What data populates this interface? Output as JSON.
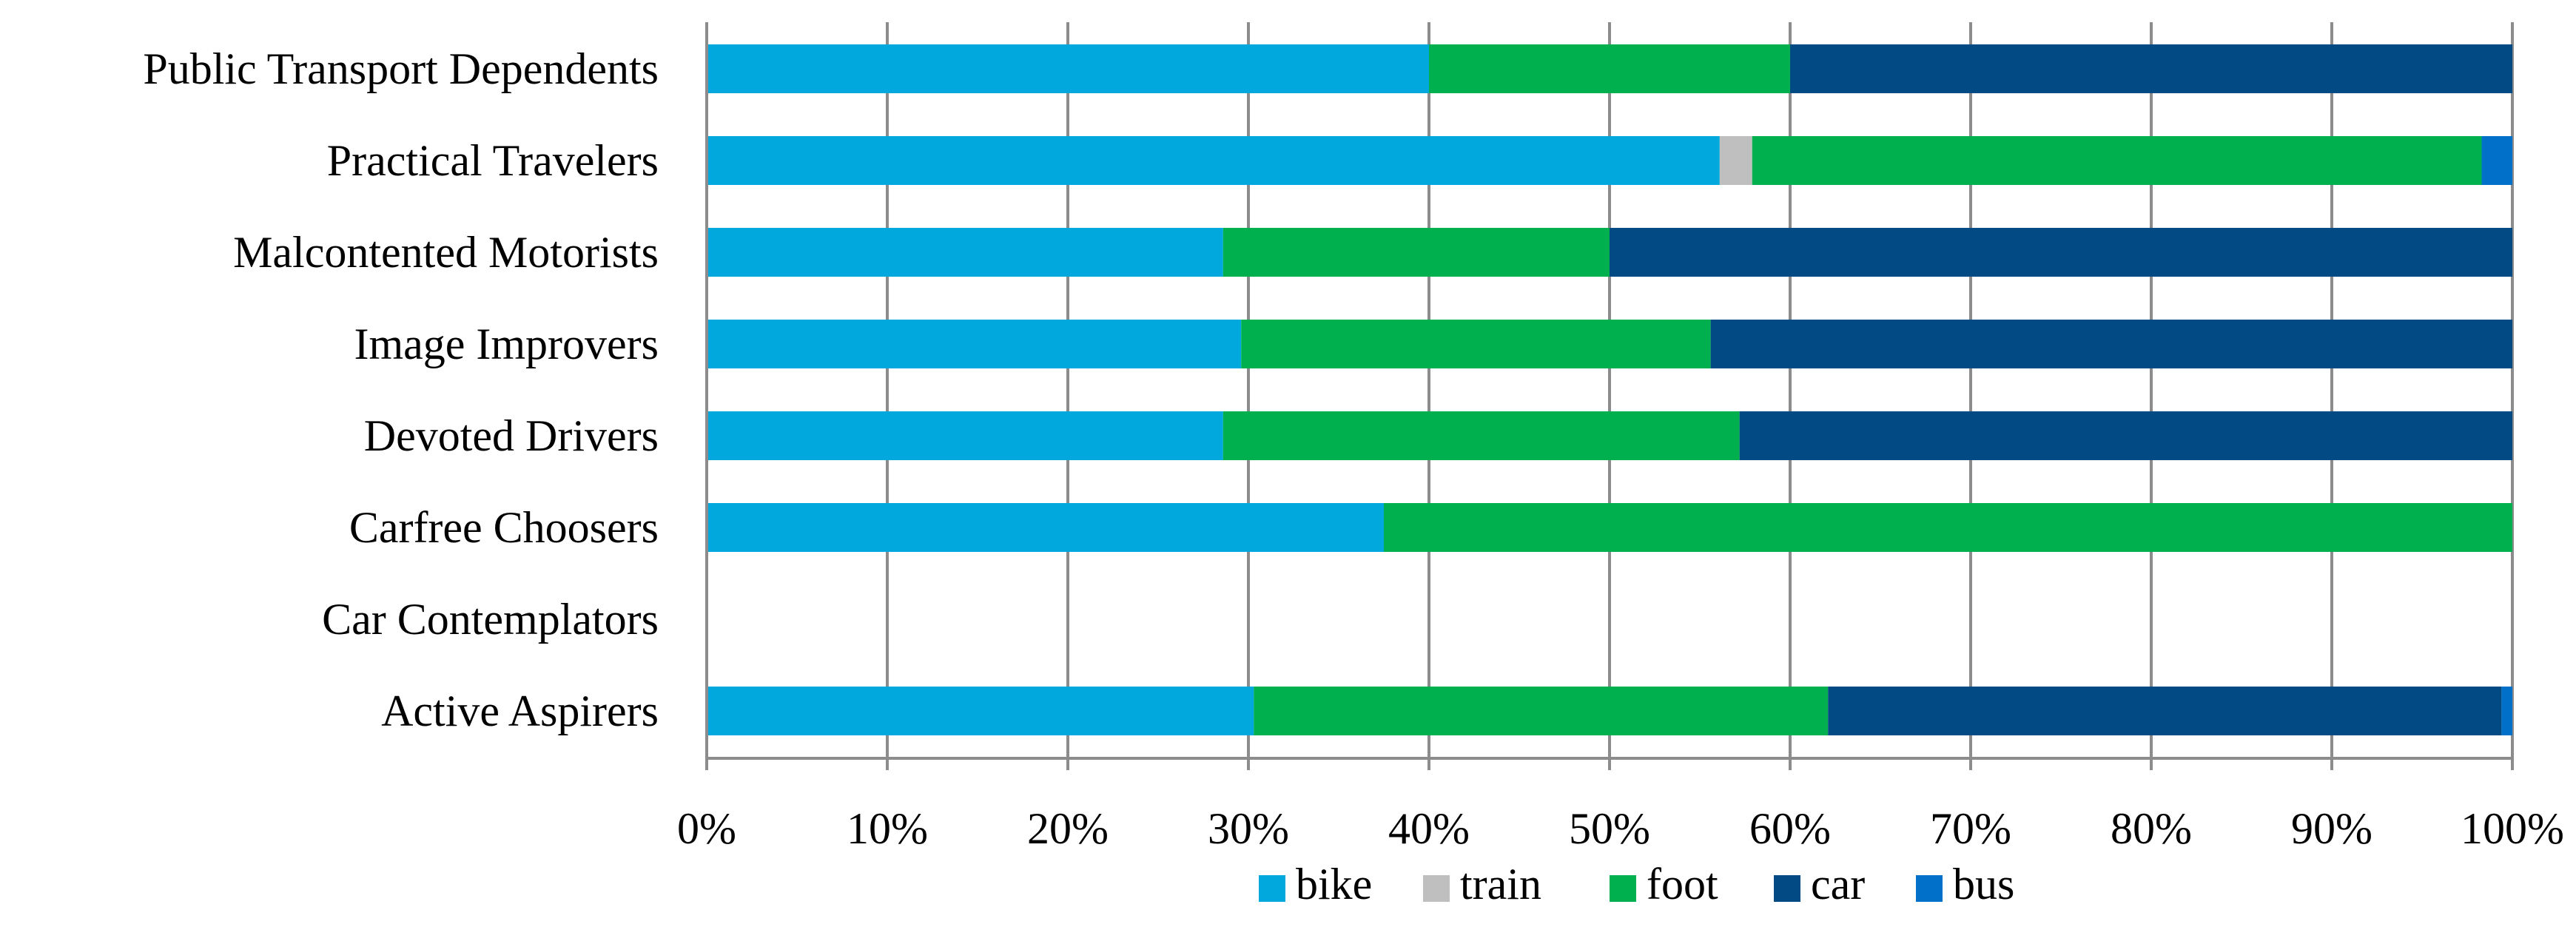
{
  "chart_data": {
    "type": "bar",
    "orientation": "horizontal",
    "stacked": "percent",
    "categories": [
      "Public Transport Dependents",
      "Practical Travelers",
      "Malcontented Motorists",
      "Image Improvers",
      "Devoted Drivers",
      "Carfree Choosers",
      "Car Contemplators",
      "Active Aspirers"
    ],
    "series": [
      {
        "name": "bike",
        "color": "#00A8DE",
        "values": [
          40.0,
          56.1,
          28.6,
          29.6,
          28.6,
          37.5,
          0,
          30.3
        ]
      },
      {
        "name": "train",
        "color": "#BFBFBF",
        "values": [
          0,
          1.8,
          0,
          0,
          0,
          0,
          0,
          0
        ]
      },
      {
        "name": "foot",
        "color": "#00B04F",
        "values": [
          20.0,
          40.4,
          21.4,
          26.0,
          28.6,
          62.5,
          0,
          31.8
        ]
      },
      {
        "name": "car",
        "color": "#014A84",
        "values": [
          40.0,
          0,
          50.0,
          44.4,
          42.8,
          0,
          0,
          37.3
        ]
      },
      {
        "name": "bus",
        "color": "#0070C8",
        "values": [
          0,
          1.7,
          0,
          0,
          0,
          0,
          0,
          0.6
        ]
      }
    ],
    "xlim": [
      0,
      100
    ],
    "xticks": [
      "0%",
      "10%",
      "20%",
      "30%",
      "40%",
      "50%",
      "60%",
      "70%",
      "80%",
      "90%",
      "100%"
    ],
    "grid": "vertical",
    "legend_position": "bottom",
    "title": "",
    "xlabel": "",
    "ylabel": ""
  }
}
